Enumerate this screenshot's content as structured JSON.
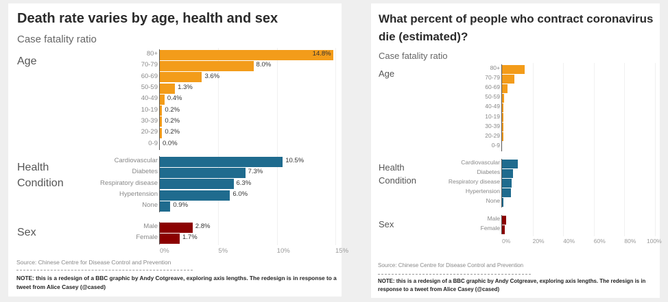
{
  "colors": {
    "Age": "#f39c1a",
    "Health Condition": "#1f6b8e",
    "Sex": "#8b0000"
  },
  "chart_data": [
    {
      "type": "bar",
      "title": "Death rate varies by age, health and sex",
      "subtitle": "Case fatality ratio",
      "xlim": [
        0,
        15
      ],
      "ticks": [
        "0%",
        "5%",
        "10%",
        "15%"
      ],
      "tick_values": [
        0,
        5,
        10,
        15
      ],
      "show_labels": true,
      "groups": [
        {
          "name": "Age",
          "categories": [
            "80+",
            "70-79",
            "60-69",
            "50-59",
            "40-49",
            "10-19",
            "30-39",
            "20-29",
            "0-9"
          ],
          "values": [
            14.8,
            8.0,
            3.6,
            1.3,
            0.4,
            0.2,
            0.2,
            0.2,
            0.0
          ],
          "labels": [
            "14.8%",
            "8.0%",
            "3.6%",
            "1.3%",
            "0.4%",
            "0.2%",
            "0.2%",
            "0.2%",
            "0.0%"
          ]
        },
        {
          "name": "Health Condition",
          "categories": [
            "Cardiovascular",
            "Diabetes",
            "Respiratory disease",
            "Hypertension",
            "None"
          ],
          "values": [
            10.5,
            7.3,
            6.3,
            6.0,
            0.9
          ],
          "labels": [
            "10.5%",
            "7.3%",
            "6.3%",
            "6.0%",
            "0.9%"
          ]
        },
        {
          "name": "Sex",
          "categories": [
            "Male",
            "Female"
          ],
          "values": [
            2.8,
            1.7
          ],
          "labels": [
            "2.8%",
            "1.7%"
          ]
        }
      ],
      "source": "Source: Chinese Centre for Disease Control and Prevention",
      "note": "NOTE: this is a redesign of a BBC graphic by Andy Cotgreave, exploring axis lengths. The redesign is in response to a tweet from Alice Casey (@cased)"
    },
    {
      "type": "bar",
      "title": "What percent of people who contract coronavirus die (estimated)?",
      "subtitle": "Case fatality ratio",
      "xlim": [
        0,
        100
      ],
      "ticks": [
        "0%",
        "20%",
        "40%",
        "60%",
        "80%",
        "100%"
      ],
      "tick_values": [
        0,
        20,
        40,
        60,
        80,
        100
      ],
      "show_labels": false,
      "groups": [
        {
          "name": "Age",
          "categories": [
            "80+",
            "70-79",
            "60-69",
            "50-59",
            "40-49",
            "10-19",
            "30-39",
            "20-29",
            "0-9"
          ],
          "values": [
            14.8,
            8.0,
            3.6,
            1.3,
            0.4,
            0.2,
            0.2,
            0.2,
            0.0
          ]
        },
        {
          "name": "Health Condition",
          "categories": [
            "Cardiovascular",
            "Diabetes",
            "Respiratory disease",
            "Hypertension",
            "None"
          ],
          "values": [
            10.5,
            7.3,
            6.3,
            6.0,
            0.9
          ]
        },
        {
          "name": "Sex",
          "categories": [
            "Male",
            "Female"
          ],
          "values": [
            2.8,
            1.7
          ]
        }
      ],
      "source": "Source: Chinese Centre for Disease Control and Prevention",
      "note": "NOTE: this is a redesign of a BBC graphic by Andy Cotgreave, exploring axis lengths. The redesign is in response to a tweet from Alice Casey (@cased)"
    }
  ]
}
